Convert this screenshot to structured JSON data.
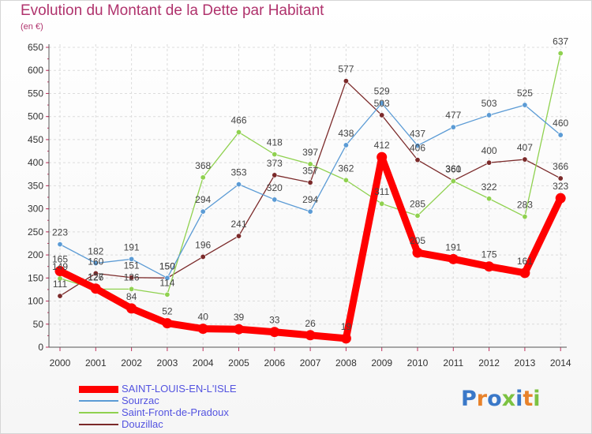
{
  "title": "Evolution du Montant de la Dette par Habitant",
  "subtitle": "(en €)",
  "logo": {
    "text": "Proxiti",
    "colors": [
      "#3a78c8",
      "#e8822a",
      "#3a78c8",
      "#7cc242",
      "#3a78c8",
      "#e8822a",
      "#7cc242"
    ]
  },
  "chart_data": {
    "type": "line",
    "title": "Evolution du Montant de la Dette par Habitant",
    "ylabel": "(en €)",
    "xlabel": "",
    "ylim": [
      0,
      650
    ],
    "yticks": [
      0,
      50,
      100,
      150,
      200,
      250,
      300,
      350,
      400,
      450,
      500,
      550,
      600,
      650
    ],
    "grid": true,
    "legend_position": "bottom-left",
    "x": [
      "2000",
      "2001",
      "2002",
      "2003",
      "2004",
      "2005",
      "2006",
      "2007",
      "2008",
      "2009",
      "2010",
      "2011",
      "2012",
      "2013",
      "2014"
    ],
    "series": [
      {
        "name": "SAINT-LOUIS-EN-L'ISLE",
        "color": "#ff0000",
        "thick": true,
        "values": [
          165,
          127,
          84,
          52,
          40,
          39,
          33,
          26,
          19,
          412,
          205,
          191,
          175,
          161,
          323
        ]
      },
      {
        "name": "Sourzac",
        "color": "#5b9bd5",
        "thick": false,
        "values": [
          223,
          182,
          191,
          150,
          294,
          353,
          320,
          294,
          438,
          529,
          437,
          477,
          503,
          525,
          460
        ]
      },
      {
        "name": "Saint-Front-de-Pradoux",
        "color": "#8fd14f",
        "thick": false,
        "values": [
          149,
          126,
          126,
          114,
          368,
          466,
          418,
          397,
          362,
          311,
          285,
          360,
          322,
          283,
          637
        ]
      },
      {
        "name": "Douzillac",
        "color": "#7b2a2a",
        "thick": false,
        "values": [
          111,
          160,
          151,
          150,
          196,
          241,
          373,
          357,
          577,
          503,
          406,
          361,
          400,
          407,
          366
        ]
      }
    ],
    "data_labels": [
      [
        "165",
        "127",
        "84",
        "52",
        "40",
        "39",
        "33",
        "26",
        "19",
        "412",
        "205",
        "191",
        "175",
        "161",
        "323"
      ],
      [
        "223",
        "182",
        "191",
        "150",
        "294",
        "353",
        "320",
        "294",
        "438",
        "529",
        "437",
        "477",
        "503",
        "525",
        "460"
      ],
      [
        "149",
        "126",
        "126",
        "114",
        "368",
        "466",
        "418",
        "397",
        "362",
        "311",
        "285",
        "360",
        "322",
        "283",
        "637"
      ],
      [
        "111",
        "160",
        "151",
        "150",
        "196",
        "241",
        "373",
        "357",
        "577",
        "503",
        "406",
        "361",
        "400",
        "407",
        "366"
      ]
    ]
  }
}
